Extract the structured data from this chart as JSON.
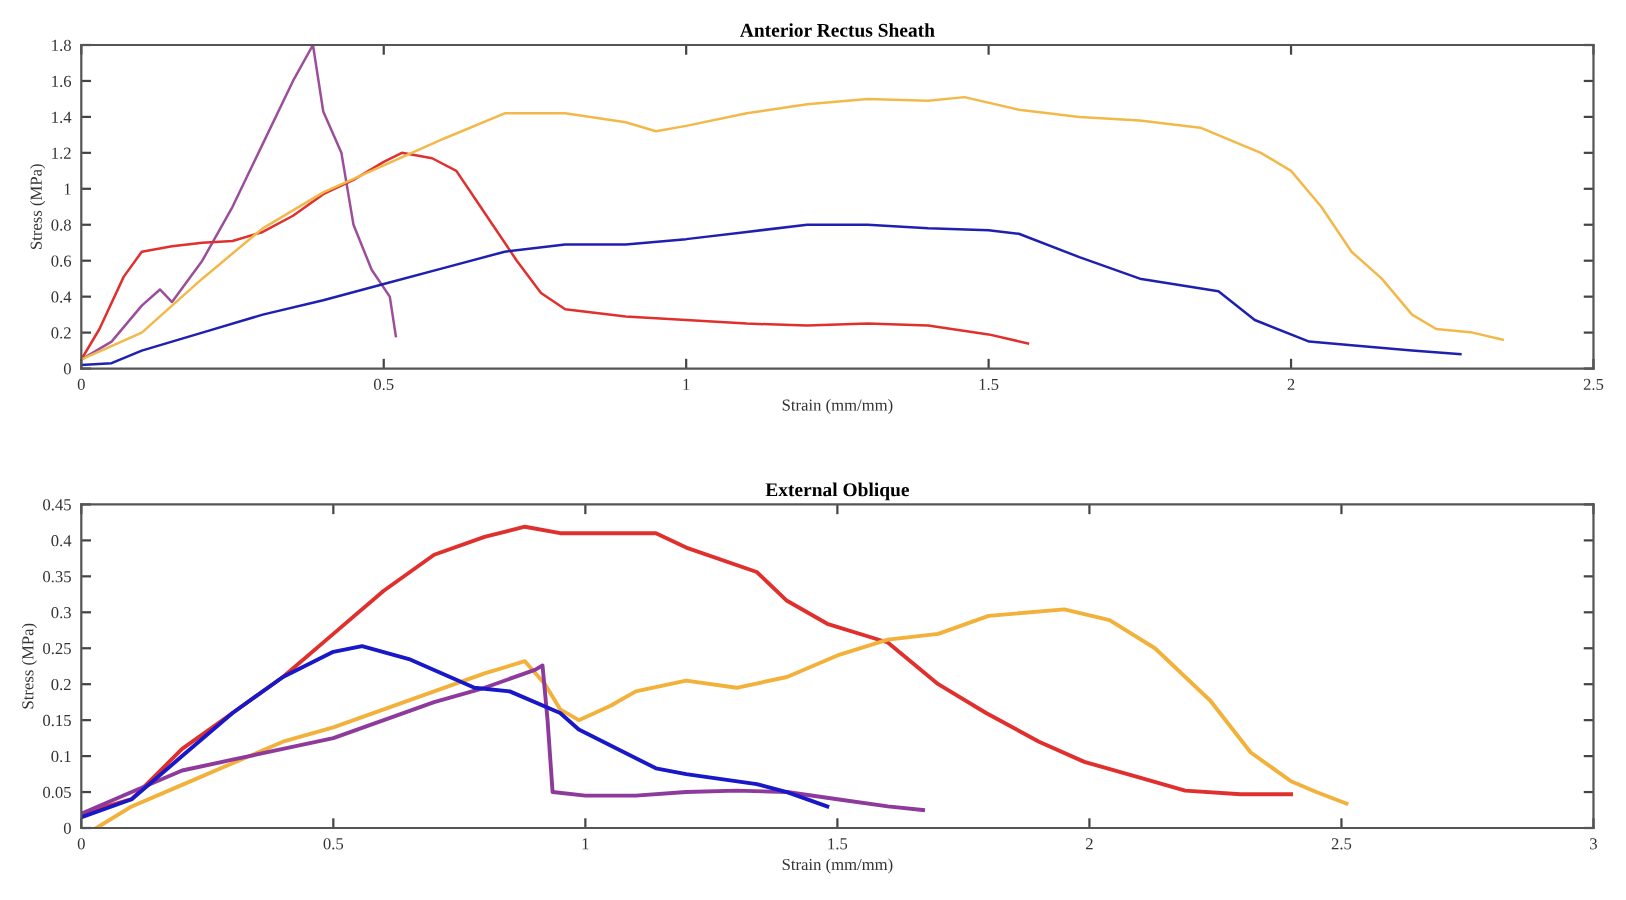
{
  "chart_data": [
    {
      "type": "line",
      "title": "Anterior Rectus Sheath",
      "xlabel": "Strain (mm/mm)",
      "ylabel": "Stress (MPa)",
      "xlim": [
        0,
        2.5
      ],
      "ylim": [
        0,
        1.8
      ],
      "xticks": [
        0,
        0.5,
        1,
        1.5,
        2,
        2.5
      ],
      "yticks": [
        0,
        0.2,
        0.4,
        0.6,
        0.8,
        1,
        1.2,
        1.4,
        1.6,
        1.8
      ],
      "grid": false,
      "legend": false,
      "marker": "none",
      "line_style": "solid",
      "series": [
        {
          "color": "#9b4f9b",
          "x": [
            0,
            0.05,
            0.1,
            0.13,
            0.15,
            0.2,
            0.25,
            0.3,
            0.35,
            0.383,
            0.4,
            0.43,
            0.45,
            0.48,
            0.51,
            0.52
          ],
          "values": [
            0.05,
            0.15,
            0.35,
            0.44,
            0.37,
            0.6,
            0.9,
            1.25,
            1.6,
            1.8,
            1.43,
            1.2,
            0.8,
            0.55,
            0.4,
            0.18
          ]
        },
        {
          "color": "#e0302e",
          "x": [
            0,
            0.03,
            0.07,
            0.1,
            0.15,
            0.2,
            0.25,
            0.3,
            0.35,
            0.4,
            0.45,
            0.5,
            0.53,
            0.58,
            0.62,
            0.65,
            0.68,
            0.72,
            0.76,
            0.8,
            0.9,
            1.0,
            1.1,
            1.2,
            1.3,
            1.4,
            1.5,
            1.565
          ],
          "values": [
            0.05,
            0.22,
            0.51,
            0.65,
            0.68,
            0.7,
            0.71,
            0.76,
            0.85,
            0.97,
            1.05,
            1.15,
            1.2,
            1.17,
            1.1,
            0.95,
            0.8,
            0.6,
            0.42,
            0.33,
            0.29,
            0.27,
            0.25,
            0.24,
            0.25,
            0.24,
            0.19,
            0.14
          ]
        },
        {
          "color": "#f2b94a",
          "x": [
            0,
            0.1,
            0.2,
            0.3,
            0.4,
            0.5,
            0.6,
            0.7,
            0.8,
            0.9,
            0.95,
            1.0,
            1.1,
            1.2,
            1.3,
            1.4,
            1.46,
            1.55,
            1.65,
            1.75,
            1.85,
            1.95,
            2.0,
            2.05,
            2.1,
            2.15,
            2.2,
            2.24,
            2.3,
            2.35
          ],
          "values": [
            0.05,
            0.2,
            0.5,
            0.78,
            0.98,
            1.13,
            1.28,
            1.42,
            1.42,
            1.37,
            1.32,
            1.35,
            1.42,
            1.47,
            1.5,
            1.49,
            1.51,
            1.44,
            1.4,
            1.38,
            1.34,
            1.2,
            1.1,
            0.9,
            0.65,
            0.5,
            0.3,
            0.22,
            0.2,
            0.16
          ]
        },
        {
          "color": "#2020b0",
          "x": [
            0,
            0.05,
            0.1,
            0.2,
            0.3,
            0.4,
            0.5,
            0.6,
            0.7,
            0.8,
            0.9,
            1.0,
            1.1,
            1.2,
            1.3,
            1.4,
            1.5,
            1.55,
            1.65,
            1.75,
            1.88,
            1.94,
            2.03,
            2.1,
            2.2,
            2.28
          ],
          "values": [
            0.02,
            0.03,
            0.1,
            0.2,
            0.3,
            0.38,
            0.47,
            0.56,
            0.65,
            0.69,
            0.69,
            0.72,
            0.76,
            0.8,
            0.8,
            0.78,
            0.77,
            0.75,
            0.62,
            0.5,
            0.43,
            0.27,
            0.15,
            0.13,
            0.1,
            0.08
          ]
        }
      ]
    },
    {
      "type": "line",
      "title": "External Oblique",
      "xlabel": "Strain (mm/mm)",
      "ylabel": "Stress (MPa)",
      "xlim": [
        0,
        3
      ],
      "ylim": [
        0,
        0.45
      ],
      "xticks": [
        0,
        0.5,
        1,
        1.5,
        2,
        2.5,
        3
      ],
      "yticks": [
        0,
        0.05,
        0.1,
        0.15,
        0.2,
        0.25,
        0.3,
        0.35,
        0.4,
        0.45
      ],
      "grid": false,
      "legend": false,
      "marker": "none",
      "line_style": "solid",
      "series": [
        {
          "color": "#e0302e",
          "x": [
            0,
            0.1,
            0.2,
            0.3,
            0.4,
            0.5,
            0.6,
            0.7,
            0.8,
            0.88,
            0.95,
            1.05,
            1.14,
            1.2,
            1.34,
            1.4,
            1.48,
            1.6,
            1.7,
            1.795,
            1.9,
            1.99,
            2.1,
            2.19,
            2.3,
            2.4
          ],
          "values": [
            0.02,
            0.04,
            0.11,
            0.16,
            0.21,
            0.27,
            0.33,
            0.38,
            0.405,
            0.419,
            0.41,
            0.41,
            0.41,
            0.39,
            0.356,
            0.316,
            0.284,
            0.258,
            0.2,
            0.16,
            0.12,
            0.092,
            0.07,
            0.052,
            0.047,
            0.047
          ]
        },
        {
          "color": "#f2b13a",
          "x": [
            0.03,
            0.1,
            0.2,
            0.3,
            0.4,
            0.5,
            0.6,
            0.7,
            0.8,
            0.88,
            0.92,
            0.95,
            0.987,
            1.05,
            1.1,
            1.2,
            1.3,
            1.4,
            1.5,
            1.6,
            1.7,
            1.8,
            1.95,
            2.04,
            2.13,
            2.24,
            2.32,
            2.4,
            2.45,
            2.51
          ],
          "values": [
            0.0,
            0.03,
            0.06,
            0.09,
            0.12,
            0.14,
            0.165,
            0.19,
            0.215,
            0.232,
            0.2,
            0.165,
            0.15,
            0.17,
            0.19,
            0.205,
            0.195,
            0.21,
            0.24,
            0.262,
            0.27,
            0.295,
            0.304,
            0.289,
            0.25,
            0.177,
            0.105,
            0.065,
            0.05,
            0.034
          ]
        },
        {
          "color": "#8e3a9c",
          "x": [
            0,
            0.1,
            0.2,
            0.3,
            0.4,
            0.5,
            0.6,
            0.7,
            0.8,
            0.9,
            0.915,
            0.925,
            0.935,
            1.0,
            1.1,
            1.2,
            1.3,
            1.4,
            1.5,
            1.6,
            1.67
          ],
          "values": [
            0.02,
            0.05,
            0.08,
            0.095,
            0.11,
            0.125,
            0.15,
            0.175,
            0.195,
            0.22,
            0.226,
            0.15,
            0.05,
            0.045,
            0.045,
            0.05,
            0.052,
            0.05,
            0.04,
            0.03,
            0.025
          ]
        },
        {
          "color": "#1818c8",
          "x": [
            0,
            0.1,
            0.2,
            0.3,
            0.4,
            0.5,
            0.557,
            0.65,
            0.78,
            0.85,
            0.95,
            0.987,
            1.14,
            1.2,
            1.34,
            1.4,
            1.48
          ],
          "values": [
            0.015,
            0.04,
            0.1,
            0.16,
            0.21,
            0.245,
            0.253,
            0.235,
            0.195,
            0.19,
            0.16,
            0.137,
            0.083,
            0.075,
            0.061,
            0.05,
            0.03
          ]
        }
      ]
    }
  ]
}
